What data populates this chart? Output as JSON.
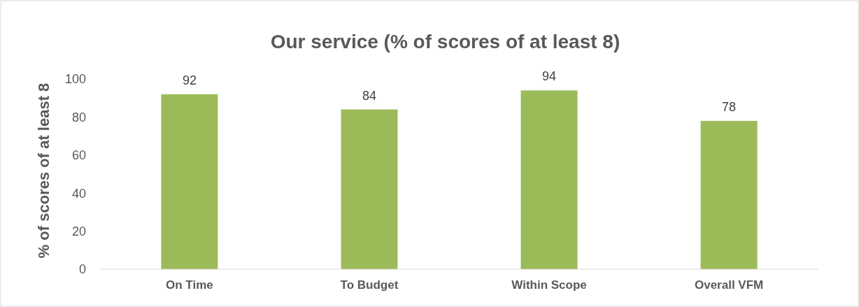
{
  "chart_data": {
    "type": "bar",
    "title": "Our service (% of scores of at least 8)",
    "ylabel": "% of scores of at least 8",
    "categories": [
      "On Time",
      "To Budget",
      "Within Scope",
      "Overall VFM"
    ],
    "values": [
      92,
      84,
      94,
      78
    ],
    "color": "#9bbb59",
    "ylim": [
      0,
      100
    ],
    "yticks": [
      0,
      20,
      40,
      60,
      80,
      100
    ],
    "grid": false,
    "data_labels": true
  }
}
